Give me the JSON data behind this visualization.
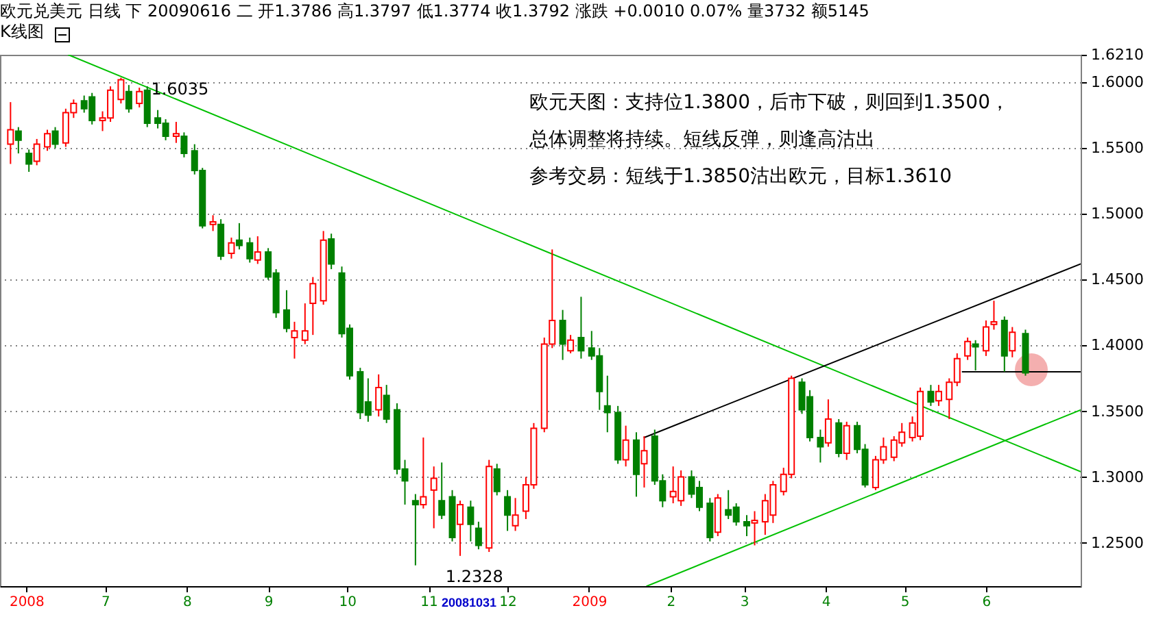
{
  "chart_data": {
    "type": "candlestick",
    "title": "欧元兑美元 日线 下 20090616 二 开1.3786 高1.3797 低1.3774 收1.3792 涨跌 +0.0010 0.07% 量3732 额5145",
    "subtitle": "K线图",
    "x": [
      "2008-05-26",
      "2008-05-29",
      "2008-06-02",
      "2008-06-05",
      "2008-06-09",
      "2008-06-12",
      "2008-06-16",
      "2008-06-19",
      "2008-06-23",
      "2008-06-26",
      "2008-06-30",
      "2008-07-03",
      "2008-07-07",
      "2008-07-10",
      "2008-07-14",
      "2008-07-17",
      "2008-07-21",
      "2008-07-24",
      "2008-07-28",
      "2008-07-31",
      "2008-08-04",
      "2008-08-07",
      "2008-08-11",
      "2008-08-14",
      "2008-08-18",
      "2008-08-21",
      "2008-08-25",
      "2008-08-28",
      "2008-09-01",
      "2008-09-04",
      "2008-09-08",
      "2008-09-11",
      "2008-09-15",
      "2008-09-18",
      "2008-09-22",
      "2008-09-25",
      "2008-09-29",
      "2008-10-02",
      "2008-10-06",
      "2008-10-09",
      "2008-10-13",
      "2008-10-16",
      "2008-10-20",
      "2008-10-23",
      "2008-10-27",
      "2008-10-30",
      "2008-11-03",
      "2008-11-06",
      "2008-11-10",
      "2008-11-13",
      "2008-11-17",
      "2008-11-20",
      "2008-11-24",
      "2008-11-27",
      "2008-12-01",
      "2008-12-04",
      "2008-12-08",
      "2008-12-11",
      "2008-12-15",
      "2008-12-18",
      "2008-12-22",
      "2008-12-25",
      "2008-12-29",
      "2009-01-02",
      "2009-01-05",
      "2009-01-08",
      "2009-01-12",
      "2009-01-15",
      "2009-01-19",
      "2009-01-22",
      "2009-01-26",
      "2009-01-29",
      "2009-02-02",
      "2009-02-05",
      "2009-02-09",
      "2009-02-12",
      "2009-02-16",
      "2009-02-19",
      "2009-02-23",
      "2009-02-26",
      "2009-03-02",
      "2009-03-05",
      "2009-03-09",
      "2009-03-12",
      "2009-03-16",
      "2009-03-19",
      "2009-03-23",
      "2009-03-26",
      "2009-03-30",
      "2009-04-02",
      "2009-04-06",
      "2009-04-09",
      "2009-04-13",
      "2009-04-16",
      "2009-04-20",
      "2009-04-23",
      "2009-04-27",
      "2009-04-30",
      "2009-05-04",
      "2009-05-07",
      "2009-05-11",
      "2009-05-14",
      "2009-05-18",
      "2009-05-21",
      "2009-05-25",
      "2009-05-28",
      "2009-06-01",
      "2009-06-04",
      "2009-06-08",
      "2009-06-11",
      "2009-06-16"
    ],
    "ohlc": [
      [
        1.553,
        1.585,
        1.538,
        1.564
      ],
      [
        1.563,
        1.566,
        1.546,
        1.556
      ],
      [
        1.546,
        1.549,
        1.532,
        1.538
      ],
      [
        1.54,
        1.557,
        1.537,
        1.553
      ],
      [
        1.551,
        1.564,
        1.548,
        1.561
      ],
      [
        1.563,
        1.566,
        1.55,
        1.553
      ],
      [
        1.554,
        1.58,
        1.551,
        1.577
      ],
      [
        1.577,
        1.587,
        1.573,
        1.584
      ],
      [
        1.586,
        1.59,
        1.577,
        1.58
      ],
      [
        1.589,
        1.592,
        1.568,
        1.571
      ],
      [
        1.571,
        1.578,
        1.563,
        1.573
      ],
      [
        1.573,
        1.597,
        1.57,
        1.594
      ],
      [
        1.587,
        1.6035,
        1.584,
        1.602
      ],
      [
        1.593,
        1.598,
        1.577,
        1.58
      ],
      [
        1.584,
        1.596,
        1.581,
        1.593
      ],
      [
        1.594,
        1.597,
        1.566,
        1.569
      ],
      [
        1.573,
        1.579,
        1.565,
        1.569
      ],
      [
        1.569,
        1.572,
        1.556,
        1.559
      ],
      [
        1.559,
        1.57,
        1.554,
        1.561
      ],
      [
        1.559,
        1.562,
        1.543,
        1.546
      ],
      [
        1.548,
        1.553,
        1.53,
        1.533
      ],
      [
        1.533,
        1.535,
        1.489,
        1.491
      ],
      [
        1.492,
        1.499,
        1.487,
        1.494
      ],
      [
        1.492,
        1.496,
        1.465,
        1.468
      ],
      [
        1.47,
        1.482,
        1.466,
        1.478
      ],
      [
        1.48,
        1.493,
        1.473,
        1.476
      ],
      [
        1.478,
        1.482,
        1.463,
        1.466
      ],
      [
        1.465,
        1.483,
        1.462,
        1.471
      ],
      [
        1.471,
        1.474,
        1.45,
        1.452
      ],
      [
        1.455,
        1.458,
        1.421,
        1.425
      ],
      [
        1.427,
        1.442,
        1.41,
        1.413
      ],
      [
        1.406,
        1.418,
        1.39,
        1.411
      ],
      [
        1.404,
        1.432,
        1.401,
        1.411
      ],
      [
        1.432,
        1.452,
        1.408,
        1.447
      ],
      [
        1.434,
        1.487,
        1.431,
        1.48
      ],
      [
        1.481,
        1.485,
        1.458,
        1.462
      ],
      [
        1.455,
        1.46,
        1.406,
        1.409
      ],
      [
        1.413,
        1.416,
        1.374,
        1.377
      ],
      [
        1.38,
        1.383,
        1.344,
        1.349
      ],
      [
        1.357,
        1.375,
        1.342,
        1.347
      ],
      [
        1.351,
        1.378,
        1.346,
        1.368
      ],
      [
        1.362,
        1.37,
        1.341,
        1.344
      ],
      [
        1.351,
        1.356,
        1.302,
        1.306
      ],
      [
        1.306,
        1.313,
        1.279,
        1.297
      ],
      [
        1.282,
        1.287,
        1.2328,
        1.279
      ],
      [
        1.279,
        1.33,
        1.276,
        1.285
      ],
      [
        1.29,
        1.308,
        1.261,
        1.299
      ],
      [
        1.282,
        1.311,
        1.268,
        1.271
      ],
      [
        1.285,
        1.29,
        1.251,
        1.254
      ],
      [
        1.264,
        1.282,
        1.24,
        1.279
      ],
      [
        1.277,
        1.282,
        1.251,
        1.264
      ],
      [
        1.261,
        1.266,
        1.245,
        1.248
      ],
      [
        1.246,
        1.313,
        1.243,
        1.308
      ],
      [
        1.306,
        1.31,
        1.286,
        1.289
      ],
      [
        1.285,
        1.29,
        1.259,
        1.271
      ],
      [
        1.263,
        1.284,
        1.259,
        1.271
      ],
      [
        1.274,
        1.3,
        1.268,
        1.294
      ],
      [
        1.294,
        1.341,
        1.291,
        1.337
      ],
      [
        1.337,
        1.406,
        1.334,
        1.401
      ],
      [
        1.401,
        1.473,
        1.398,
        1.419
      ],
      [
        1.419,
        1.427,
        1.389,
        1.401
      ],
      [
        1.396,
        1.408,
        1.394,
        1.404
      ],
      [
        1.406,
        1.437,
        1.39,
        1.396
      ],
      [
        1.398,
        1.411,
        1.389,
        1.392
      ],
      [
        1.392,
        1.398,
        1.351,
        1.365
      ],
      [
        1.354,
        1.377,
        1.334,
        1.349
      ],
      [
        1.349,
        1.354,
        1.31,
        1.313
      ],
      [
        1.313,
        1.339,
        1.308,
        1.328
      ],
      [
        1.328,
        1.334,
        1.285,
        1.302
      ],
      [
        1.31,
        1.331,
        1.292,
        1.32
      ],
      [
        1.331,
        1.336,
        1.294,
        1.297
      ],
      [
        1.297,
        1.302,
        1.277,
        1.282
      ],
      [
        1.285,
        1.308,
        1.28,
        1.289
      ],
      [
        1.282,
        1.305,
        1.278,
        1.3
      ],
      [
        1.3,
        1.305,
        1.284,
        1.287
      ],
      [
        1.292,
        1.297,
        1.274,
        1.277
      ],
      [
        1.28,
        1.284,
        1.251,
        1.254
      ],
      [
        1.258,
        1.287,
        1.255,
        1.284
      ],
      [
        1.275,
        1.29,
        1.268,
        1.271
      ],
      [
        1.277,
        1.28,
        1.263,
        1.266
      ],
      [
        1.266,
        1.271,
        1.255,
        1.263
      ],
      [
        1.265,
        1.274,
        1.248,
        1.267
      ],
      [
        1.266,
        1.287,
        1.256,
        1.282
      ],
      [
        1.271,
        1.297,
        1.265,
        1.294
      ],
      [
        1.289,
        1.307,
        1.286,
        1.302
      ],
      [
        1.302,
        1.377,
        1.299,
        1.375
      ],
      [
        1.372,
        1.375,
        1.348,
        1.351
      ],
      [
        1.361,
        1.366,
        1.327,
        1.33
      ],
      [
        1.33,
        1.336,
        1.311,
        1.323
      ],
      [
        1.326,
        1.359,
        1.323,
        1.344
      ],
      [
        1.341,
        1.344,
        1.315,
        1.318
      ],
      [
        1.318,
        1.342,
        1.313,
        1.339
      ],
      [
        1.339,
        1.342,
        1.318,
        1.321
      ],
      [
        1.321,
        1.325,
        1.292,
        1.294
      ],
      [
        1.292,
        1.316,
        1.29,
        1.313
      ],
      [
        1.313,
        1.33,
        1.31,
        1.323
      ],
      [
        1.315,
        1.331,
        1.312,
        1.328
      ],
      [
        1.326,
        1.341,
        1.323,
        1.334
      ],
      [
        1.33,
        1.346,
        1.327,
        1.341
      ],
      [
        1.331,
        1.368,
        1.328,
        1.365
      ],
      [
        1.365,
        1.37,
        1.354,
        1.357
      ],
      [
        1.358,
        1.37,
        1.354,
        1.365
      ],
      [
        1.359,
        1.375,
        1.344,
        1.372
      ],
      [
        1.372,
        1.394,
        1.369,
        1.39
      ],
      [
        1.392,
        1.406,
        1.389,
        1.403
      ],
      [
        1.401,
        1.404,
        1.381,
        1.399
      ],
      [
        1.396,
        1.419,
        1.392,
        1.414
      ],
      [
        1.416,
        1.434,
        1.412,
        1.418
      ],
      [
        1.419,
        1.422,
        1.38,
        1.392
      ],
      [
        1.396,
        1.414,
        1.391,
        1.41
      ],
      [
        1.409,
        1.412,
        1.377,
        1.3792
      ]
    ],
    "colors": [
      "#ff0000",
      "#008000",
      "#008000",
      "#ff0000",
      "#ff0000",
      "#008000",
      "#ff0000",
      "#ff0000",
      "#008000",
      "#008000",
      "#ff0000",
      "#ff0000",
      "#ff0000",
      "#008000",
      "#ff0000",
      "#008000",
      "#008000",
      "#008000",
      "#ff0000",
      "#008000",
      "#008000",
      "#008000",
      "#ff0000",
      "#008000",
      "#ff0000",
      "#008000",
      "#008000",
      "#ff0000",
      "#008000",
      "#008000",
      "#008000",
      "#ff0000",
      "#ff0000",
      "#ff0000",
      "#ff0000",
      "#008000",
      "#008000",
      "#008000",
      "#008000",
      "#008000",
      "#ff0000",
      "#008000",
      "#008000",
      "#008000",
      "#008000",
      "#ff0000",
      "#ff0000",
      "#008000",
      "#008000",
      "#ff0000",
      "#008000",
      "#008000",
      "#ff0000",
      "#008000",
      "#008000",
      "#ff0000",
      "#ff0000",
      "#ff0000",
      "#ff0000",
      "#ff0000",
      "#008000",
      "#ff0000",
      "#008000",
      "#008000",
      "#008000",
      "#008000",
      "#008000",
      "#ff0000",
      "#008000",
      "#ff0000",
      "#008000",
      "#008000",
      "#ff0000",
      "#ff0000",
      "#008000",
      "#008000",
      "#008000",
      "#ff0000",
      "#008000",
      "#008000",
      "#008000",
      "#ff0000",
      "#ff0000",
      "#ff0000",
      "#ff0000",
      "#ff0000",
      "#008000",
      "#008000",
      "#008000",
      "#ff0000",
      "#008000",
      "#ff0000",
      "#008000",
      "#008000",
      "#ff0000",
      "#ff0000",
      "#ff0000",
      "#ff0000",
      "#ff0000",
      "#ff0000",
      "#008000",
      "#ff0000",
      "#ff0000",
      "#ff0000",
      "#ff0000",
      "#008000",
      "#ff0000",
      "#ff0000",
      "#008000",
      "#ff0000",
      "#008000"
    ],
    "xlim": [
      "2008-05-22",
      "2009-07-07"
    ],
    "ylim": [
      1.217,
      1.621
    ],
    "xticks": [
      {
        "value": "2008-06-01",
        "label": "2008"
      },
      {
        "value": "2008-07-01",
        "label": "7"
      },
      {
        "value": "2008-08-01",
        "label": "8"
      },
      {
        "value": "2008-09-01",
        "label": "9"
      },
      {
        "value": "2008-10-01",
        "label": "10"
      },
      {
        "value": "2008-11-01",
        "label": "11"
      },
      {
        "value": "2008-12-01",
        "label": "12"
      },
      {
        "value": "2009-01-01",
        "label": "2009"
      },
      {
        "value": "2009-02-01",
        "label": "2"
      },
      {
        "value": "2009-03-01",
        "label": "3"
      },
      {
        "value": "2009-04-01",
        "label": "4"
      },
      {
        "value": "2009-05-01",
        "label": "5"
      },
      {
        "value": "2009-06-01",
        "label": "6"
      }
    ],
    "yticks": [
      {
        "value": 1.25,
        "label": "1.2500"
      },
      {
        "value": 1.3,
        "label": "1.3000"
      },
      {
        "value": 1.35,
        "label": "1.3500"
      },
      {
        "value": 1.4,
        "label": "1.4000"
      },
      {
        "value": 1.45,
        "label": "1.4500"
      },
      {
        "value": 1.5,
        "label": "1.5000"
      },
      {
        "value": 1.55,
        "label": "1.5500"
      },
      {
        "value": 1.6,
        "label": "1.6000"
      },
      {
        "value": 1.621,
        "label": "1.6210"
      }
    ],
    "grid": "y",
    "series": [
      {
        "type": "line",
        "color": "#00c000",
        "x": [
          "2008-06-17",
          "2009-07-07"
        ],
        "values": [
          1.621,
          1.304
        ]
      },
      {
        "type": "line",
        "color": "#00c000",
        "x": [
          "2009-01-23",
          "2009-07-07"
        ],
        "values": [
          1.217,
          1.351
        ]
      },
      {
        "type": "line",
        "color": "#000000",
        "x": [
          "2009-01-22",
          "2009-07-07"
        ],
        "values": [
          1.33,
          1.462
        ]
      },
      {
        "type": "line",
        "color": "#000000",
        "x": [
          "2009-05-23",
          "2009-07-07"
        ],
        "values": [
          1.38,
          1.38
        ]
      }
    ],
    "annotations": [
      {
        "text": "1.6035",
        "x": "2008-07-07",
        "y": 1.6035
      },
      {
        "text": "1.2328",
        "x": "2008-10-27",
        "y": 1.2328
      },
      "欧元天图：支持位1.3800，后市下破，则回到1.3500，",
      "总体调整将持续。短线反弹，则逢高沽出",
      "参考交易：短线于1.3850沽出欧元，目标1.3610",
      "20081031"
    ]
  }
}
